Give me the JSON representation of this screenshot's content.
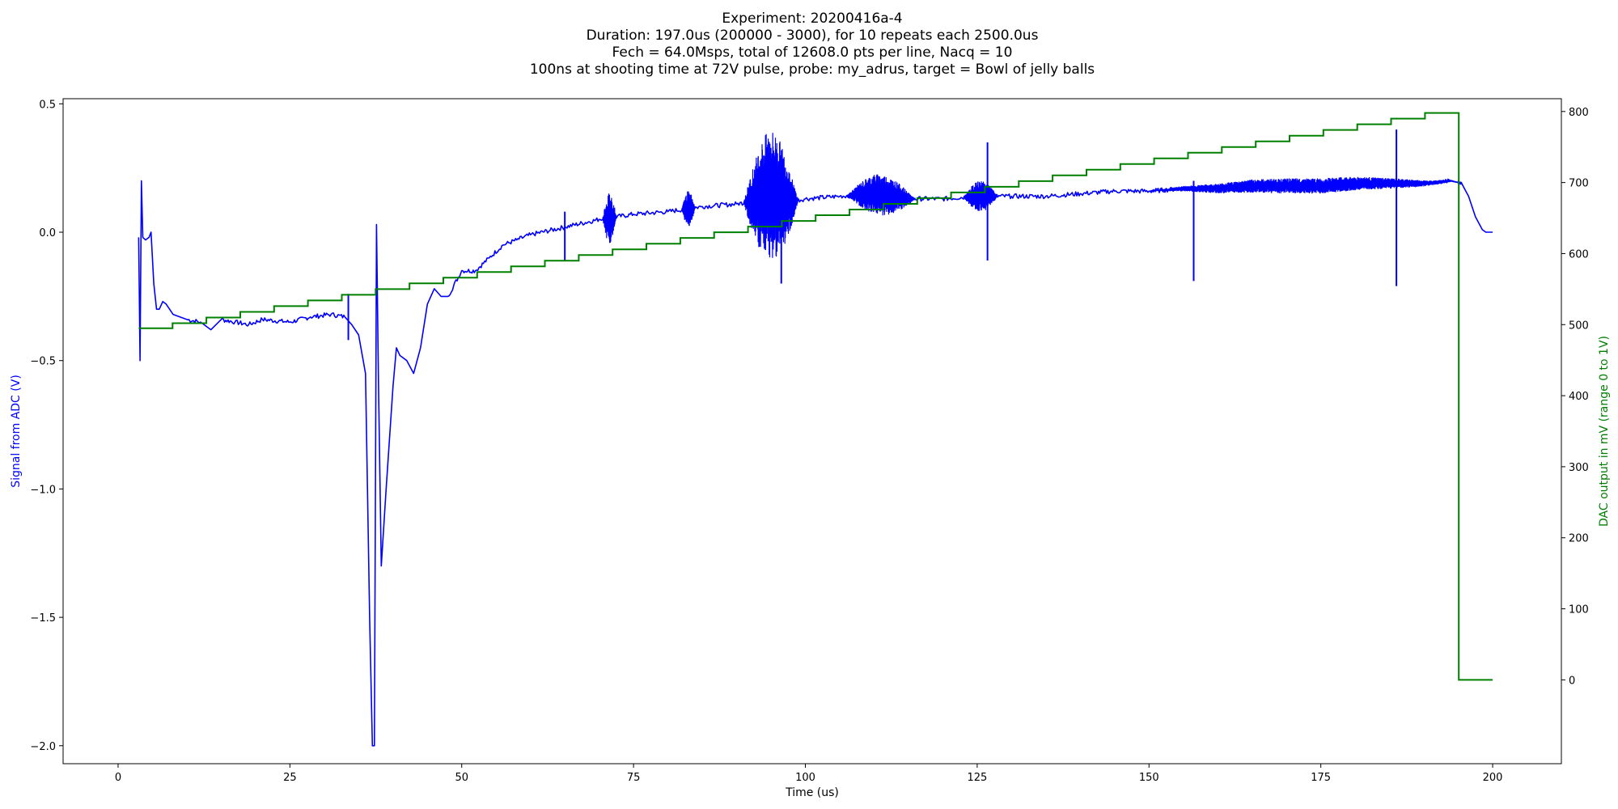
{
  "chart_data": {
    "type": "line",
    "title_lines": [
      "Experiment: 20200416a-4",
      "Duration: 197.0us (200000 - 3000), for 10 repeats each 2500.0us",
      "Fech = 64.0Msps, total of 12608.0 pts per line, Nacq = 10",
      "100ns at shooting time at 72V pulse, probe: my_adrus, target = Bowl of jelly balls"
    ],
    "xlabel": "Time (us)",
    "ylabel_left": "Signal from ADC (V)",
    "ylabel_right": "DAC output in mV (range 0 to 1V)",
    "xlim": [
      -8,
      210
    ],
    "ylim_left": [
      -2.07,
      0.52
    ],
    "ylim_right": [
      -118,
      818
    ],
    "x_ticks": [
      "0",
      "25",
      "50",
      "75",
      "100",
      "125",
      "150",
      "175",
      "200"
    ],
    "y_left_ticks": [
      "−2.0",
      "−1.5",
      "−1.0",
      "−0.5",
      "0.0",
      "0.5"
    ],
    "y_right_ticks": [
      "0",
      "100",
      "200",
      "300",
      "400",
      "500",
      "600",
      "700",
      "800"
    ],
    "colors": {
      "signal": "#0000ff",
      "dac": "#008000",
      "left_label": "#0000ff",
      "right_label": "#008000"
    },
    "series": [
      {
        "axis": "left",
        "color": "#0000ff",
        "points": [
          [
            3.0,
            -0.02
          ],
          [
            3.2,
            -0.5
          ],
          [
            3.4,
            0.2
          ],
          [
            3.6,
            -0.02
          ],
          [
            4.0,
            -0.03
          ],
          [
            4.5,
            -0.02
          ],
          [
            4.8,
            0.0
          ],
          [
            5.2,
            -0.2
          ],
          [
            5.6,
            -0.3
          ],
          [
            6.0,
            -0.3
          ],
          [
            6.5,
            -0.27
          ],
          [
            7.0,
            -0.28
          ],
          [
            8.0,
            -0.32
          ],
          [
            10.0,
            -0.34
          ],
          [
            12.0,
            -0.35
          ],
          [
            13.5,
            -0.38
          ],
          [
            15.0,
            -0.34
          ],
          [
            17.0,
            -0.35
          ],
          [
            19.0,
            -0.36
          ],
          [
            21.0,
            -0.34
          ],
          [
            25.0,
            -0.35
          ],
          [
            28.0,
            -0.33
          ],
          [
            31.0,
            -0.32
          ],
          [
            33.0,
            -0.33
          ],
          [
            34.0,
            -0.36
          ],
          [
            35.0,
            -0.4
          ],
          [
            36.0,
            -0.55
          ],
          [
            36.6,
            -1.5
          ],
          [
            37.0,
            -2.0
          ],
          [
            37.3,
            -2.0
          ],
          [
            37.6,
            0.03
          ],
          [
            37.9,
            -0.6
          ],
          [
            38.3,
            -1.3
          ],
          [
            39.0,
            -1.0
          ],
          [
            40.0,
            -0.6
          ],
          [
            40.5,
            -0.45
          ],
          [
            41.0,
            -0.48
          ],
          [
            42.0,
            -0.5
          ],
          [
            43.0,
            -0.55
          ],
          [
            44.0,
            -0.45
          ],
          [
            45.0,
            -0.28
          ],
          [
            46.0,
            -0.22
          ],
          [
            47.0,
            -0.25
          ],
          [
            48.0,
            -0.25
          ],
          [
            50.0,
            -0.15
          ],
          [
            52.0,
            -0.15
          ],
          [
            54.0,
            -0.1
          ],
          [
            56.0,
            -0.05
          ],
          [
            58.0,
            -0.03
          ],
          [
            60.0,
            -0.01
          ],
          [
            65.0,
            0.02
          ],
          [
            70.0,
            0.05
          ],
          [
            75.0,
            0.07
          ],
          [
            80.0,
            0.08
          ],
          [
            85.0,
            0.1
          ],
          [
            90.0,
            0.11
          ],
          [
            92.0,
            0.12
          ],
          [
            95.0,
            0.15
          ],
          [
            98.0,
            0.12
          ],
          [
            100.0,
            0.13
          ],
          [
            105.0,
            0.14
          ],
          [
            110.0,
            0.15
          ],
          [
            115.0,
            0.13
          ],
          [
            120.0,
            0.13
          ],
          [
            125.0,
            0.14
          ],
          [
            130.0,
            0.14
          ],
          [
            135.0,
            0.14
          ],
          [
            140.0,
            0.15
          ],
          [
            145.0,
            0.16
          ],
          [
            150.0,
            0.16
          ],
          [
            155.0,
            0.17
          ],
          [
            160.0,
            0.17
          ],
          [
            165.0,
            0.18
          ],
          [
            170.0,
            0.18
          ],
          [
            175.0,
            0.18
          ],
          [
            180.0,
            0.19
          ],
          [
            185.0,
            0.19
          ],
          [
            190.0,
            0.19
          ],
          [
            194.0,
            0.2
          ],
          [
            195.5,
            0.19
          ],
          [
            196.5,
            0.14
          ],
          [
            197.5,
            0.06
          ],
          [
            198.5,
            0.01
          ],
          [
            199.0,
            0.0
          ],
          [
            200.0,
            0.0
          ]
        ]
      },
      {
        "axis": "right",
        "color": "#008000",
        "step_start": 3.0,
        "step_width": 4.925,
        "step_values": [
          495,
          502,
          510,
          518,
          526,
          534,
          542,
          550,
          558,
          566,
          574,
          582,
          590,
          598,
          606,
          614,
          622,
          630,
          638,
          646,
          654,
          662,
          670,
          678,
          686,
          694,
          702,
          710,
          718,
          726,
          734,
          742,
          750,
          758,
          766,
          774,
          782,
          790,
          798,
          0
        ],
        "end_x": 200.0
      }
    ],
    "bursts": [
      {
        "x0": 70.5,
        "x1": 72.5,
        "amp": 0.1
      },
      {
        "x0": 82.0,
        "x1": 84.0,
        "amp": 0.07
      },
      {
        "x0": 91.0,
        "x1": 99.0,
        "amp": 0.25
      },
      {
        "x0": 106.0,
        "x1": 116.0,
        "amp": 0.08
      },
      {
        "x0": 123.0,
        "x1": 128.0,
        "amp": 0.06
      },
      {
        "x0": 150.0,
        "x1": 196.0,
        "amp": 0.03
      }
    ],
    "spikes": [
      {
        "x": 33.5,
        "top": -0.24,
        "bottom": -0.42
      },
      {
        "x": 65.0,
        "top": 0.08,
        "bottom": -0.11
      },
      {
        "x": 96.5,
        "top": 0.3,
        "bottom": -0.2
      },
      {
        "x": 126.5,
        "top": 0.35,
        "bottom": -0.11
      },
      {
        "x": 156.5,
        "top": 0.2,
        "bottom": -0.19
      },
      {
        "x": 186.0,
        "top": 0.4,
        "bottom": -0.21
      }
    ]
  }
}
